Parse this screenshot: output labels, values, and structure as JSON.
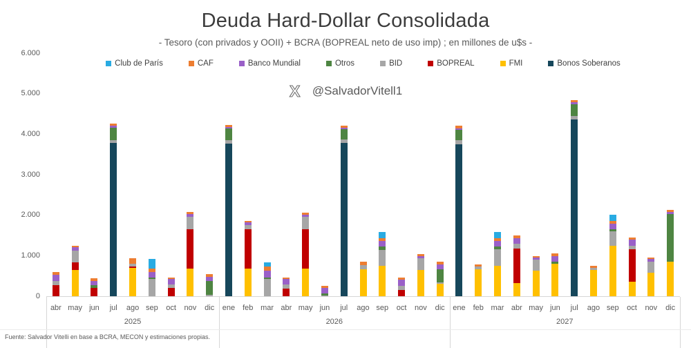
{
  "header": {
    "title": "Deuda Hard-Dollar Consolidada",
    "subtitle": "- Tesoro (con privados y OOII) + BCRA (BOPREAL neto de uso imp) ; en millones de u$s -",
    "watermark_handle": "@SalvadorVitell1",
    "watermark_icon": "x-logo-icon"
  },
  "footer": {
    "source": "Fuente: Salvador Vitelli en base a BCRA, MECON y estimaciones propias."
  },
  "chart_data": {
    "type": "bar",
    "stacked": true,
    "title": "Deuda Hard-Dollar Consolidada",
    "subtitle": "- Tesoro (con privados y OOII) + BCRA (BOPREAL neto de uso imp) ; en millones de u$s -",
    "unit": "millones de u$s",
    "ylim": [
      0,
      6000
    ],
    "ytick_labels": [
      "0",
      "1.000",
      "2.000",
      "3.000",
      "4.000",
      "5.000",
      "6.000"
    ],
    "grid": false,
    "legend_position": "top",
    "legend_order": [
      "club",
      "caf",
      "banco_mundial",
      "otros",
      "bid",
      "bopreal",
      "fmi",
      "bonos"
    ],
    "stack_order": [
      "bonos",
      "fmi",
      "bopreal",
      "bid",
      "otros",
      "banco_mundial",
      "caf",
      "club"
    ],
    "series_meta": {
      "club": {
        "label": "Club de París",
        "color": "#29ABE2"
      },
      "caf": {
        "label": "CAF",
        "color": "#ED7D31"
      },
      "banco_mundial": {
        "label": "Banco Mundial",
        "color": "#9A60C8"
      },
      "otros": {
        "label": "Otros",
        "color": "#4E8542"
      },
      "bid": {
        "label": "BID",
        "color": "#A6A6A6"
      },
      "bopreal": {
        "label": "BOPREAL",
        "color": "#C00000"
      },
      "fmi": {
        "label": "FMI",
        "color": "#FFC000"
      },
      "bonos": {
        "label": "Bonos Soberanos",
        "color": "#16475B"
      }
    },
    "groups": [
      {
        "year": "2025",
        "bars": [
          {
            "month": "abr",
            "values": {
              "bopreal": 270,
              "bid": 100,
              "banco_mundial": 160,
              "caf": 70
            }
          },
          {
            "month": "may",
            "values": {
              "fmi": 650,
              "bopreal": 190,
              "bid": 280,
              "banco_mundial": 90,
              "caf": 30
            }
          },
          {
            "month": "jun",
            "values": {
              "bopreal": 200,
              "otros": 70,
              "banco_mundial": 110,
              "caf": 70
            }
          },
          {
            "month": "jul",
            "values": {
              "bonos": 3780,
              "bid": 75,
              "otros": 310,
              "banco_mundial": 40,
              "caf": 55
            }
          },
          {
            "month": "ago",
            "values": {
              "fmi": 700,
              "bopreal": 30,
              "bid": 70,
              "caf": 130
            }
          },
          {
            "month": "sep",
            "values": {
              "bid": 430,
              "otros": 30,
              "banco_mundial": 130,
              "caf": 100,
              "club": 230
            }
          },
          {
            "month": "oct",
            "values": {
              "bopreal": 210,
              "bid": 85,
              "banco_mundial": 125,
              "caf": 45
            }
          },
          {
            "month": "nov",
            "values": {
              "fmi": 680,
              "bopreal": 980,
              "bid": 300,
              "banco_mundial": 70,
              "caf": 55
            }
          },
          {
            "month": "dic",
            "values": {
              "bid": 30,
              "otros": 340,
              "banco_mundial": 110,
              "caf": 60
            }
          }
        ]
      },
      {
        "year": "2026",
        "bars": [
          {
            "month": "ene",
            "values": {
              "bonos": 3765,
              "bid": 85,
              "otros": 285,
              "banco_mundial": 45,
              "caf": 55
            }
          },
          {
            "month": "feb",
            "values": {
              "fmi": 680,
              "bopreal": 975,
              "bid": 100,
              "banco_mundial": 70,
              "caf": 40
            }
          },
          {
            "month": "mar",
            "values": {
              "bid": 430,
              "otros": 30,
              "banco_mundial": 170,
              "caf": 110,
              "club": 100
            }
          },
          {
            "month": "abr",
            "values": {
              "bopreal": 190,
              "bid": 100,
              "banco_mundial": 130,
              "caf": 40
            }
          },
          {
            "month": "may",
            "values": {
              "fmi": 680,
              "bopreal": 975,
              "bid": 300,
              "banco_mundial": 55,
              "caf": 45
            }
          },
          {
            "month": "jun",
            "values": {
              "bid": 20,
              "otros": 50,
              "banco_mundial": 130,
              "caf": 50
            }
          },
          {
            "month": "jul",
            "values": {
              "bonos": 3790,
              "bid": 75,
              "otros": 260,
              "banco_mundial": 40,
              "caf": 45
            }
          },
          {
            "month": "ago",
            "values": {
              "fmi": 660,
              "bid": 110,
              "caf": 80
            }
          },
          {
            "month": "sep",
            "values": {
              "fmi": 750,
              "bid": 400,
              "otros": 80,
              "banco_mundial": 140,
              "caf": 70,
              "club": 150
            }
          },
          {
            "month": "oct",
            "values": {
              "bopreal": 155,
              "bid": 95,
              "banco_mundial": 160,
              "caf": 45
            }
          },
          {
            "month": "nov",
            "values": {
              "fmi": 640,
              "bid": 295,
              "banco_mundial": 60,
              "caf": 45
            }
          },
          {
            "month": "dic",
            "values": {
              "fmi": 310,
              "bid": 30,
              "otros": 330,
              "banco_mundial": 110,
              "caf": 65
            }
          }
        ]
      },
      {
        "year": "2027",
        "bars": [
          {
            "month": "ene",
            "values": {
              "bonos": 3750,
              "bid": 100,
              "otros": 260,
              "banco_mundial": 40,
              "caf": 55
            }
          },
          {
            "month": "feb",
            "values": {
              "fmi": 670,
              "bid": 60,
              "caf": 60
            }
          },
          {
            "month": "mar",
            "values": {
              "fmi": 750,
              "bid": 400,
              "otros": 70,
              "banco_mundial": 150,
              "caf": 70,
              "club": 140
            }
          },
          {
            "month": "abr",
            "values": {
              "fmi": 330,
              "bopreal": 850,
              "bid": 110,
              "banco_mundial": 150,
              "caf": 60
            }
          },
          {
            "month": "may",
            "values": {
              "fmi": 630,
              "bid": 270,
              "banco_mundial": 60,
              "caf": 30
            }
          },
          {
            "month": "jun",
            "values": {
              "fmi": 800,
              "otros": 45,
              "banco_mundial": 150,
              "caf": 55
            }
          },
          {
            "month": "jul",
            "values": {
              "bonos": 4370,
              "bid": 75,
              "otros": 300,
              "banco_mundial": 40,
              "caf": 55
            }
          },
          {
            "month": "ago",
            "values": {
              "fmi": 640,
              "bid": 55,
              "caf": 60
            }
          },
          {
            "month": "sep",
            "values": {
              "fmi": 1250,
              "bid": 350,
              "otros": 45,
              "banco_mundial": 140,
              "caf": 80,
              "club": 150
            }
          },
          {
            "month": "oct",
            "values": {
              "fmi": 350,
              "bopreal": 800,
              "bid": 90,
              "banco_mundial": 160,
              "caf": 50
            }
          },
          {
            "month": "nov",
            "values": {
              "fmi": 580,
              "bid": 270,
              "banco_mundial": 65,
              "caf": 35
            }
          },
          {
            "month": "dic",
            "values": {
              "fmi": 850,
              "otros": 1170,
              "banco_mundial": 60,
              "caf": 45
            }
          }
        ]
      }
    ]
  }
}
